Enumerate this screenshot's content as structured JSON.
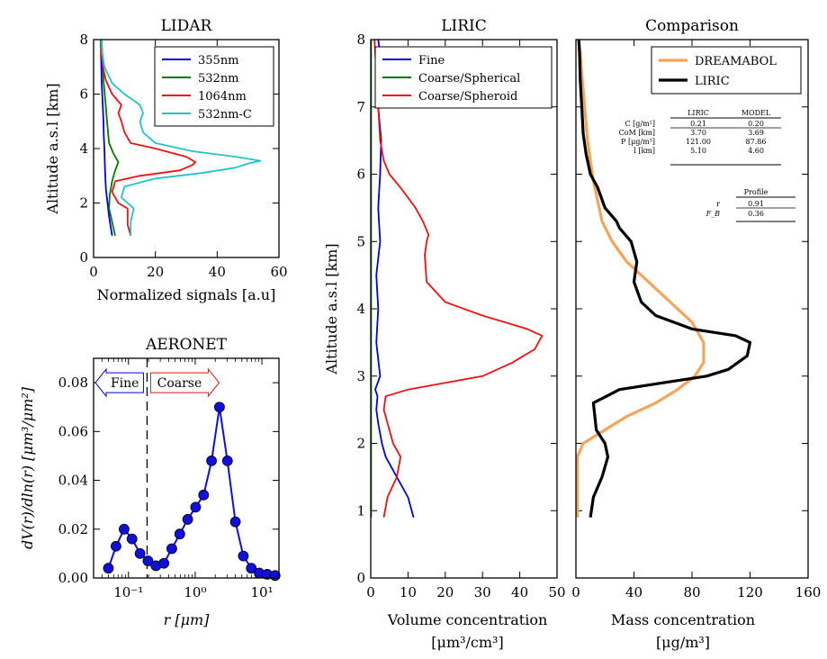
{
  "colors": {
    "blue": "#0000dd",
    "green": "#007a00",
    "red": "#ee1111",
    "cyan": "#22c4c4",
    "orange": "#f4a55a",
    "black": "#000000",
    "aeronet_marker": "#1010dd"
  },
  "chart_data": [
    {
      "id": "lidar",
      "type": "line",
      "title": "LIDAR",
      "xlabel": "Normalized signals [a.u]",
      "ylabel": "Altitude a.s.l [km]",
      "xlim": [
        0,
        60
      ],
      "ylim": [
        0,
        8
      ],
      "xticks": [
        0,
        20,
        40,
        60
      ],
      "yticks": [
        0,
        2,
        4,
        6,
        8
      ],
      "legend": {
        "placement": "top-right"
      },
      "series": [
        {
          "name": "355nm",
          "color": "blue",
          "x": [
            6,
            5,
            4.5,
            4,
            3.8,
            3.6,
            3.5,
            3.3,
            3.2,
            3,
            2.8,
            2.6,
            2.5,
            2.4,
            2.3
          ],
          "y": [
            0.8,
            1.5,
            2,
            2.5,
            3,
            3.5,
            4,
            4.5,
            5,
            5.5,
            6,
            6.5,
            7,
            7.5,
            8
          ]
        },
        {
          "name": "532nm",
          "color": "green",
          "x": [
            7,
            6,
            5,
            5.2,
            6,
            7,
            8,
            6.5,
            5,
            4.5,
            4,
            3.6,
            3.2,
            3,
            2.8,
            2.6
          ],
          "y": [
            0.8,
            1.3,
            1.8,
            2.3,
            2.8,
            3.2,
            3.5,
            3.8,
            4.2,
            4.8,
            5.5,
            6,
            6.5,
            7,
            7.5,
            8
          ]
        },
        {
          "name": "1064nm",
          "color": "red",
          "x": [
            12,
            11,
            11,
            8,
            6,
            7,
            15,
            28,
            32,
            33,
            30,
            20,
            12,
            10,
            9,
            8,
            9,
            6,
            4,
            3,
            2.5,
            2.2
          ],
          "y": [
            0.8,
            1.2,
            1.8,
            2,
            2.4,
            2.8,
            3,
            3.2,
            3.4,
            3.5,
            3.7,
            4,
            4.2,
            4.6,
            5,
            5.3,
            5.6,
            6,
            6.5,
            7,
            7.5,
            8
          ]
        },
        {
          "name": "532nm-C",
          "color": "cyan",
          "x": [
            12,
            12,
            13,
            9,
            10,
            20,
            35,
            46,
            50,
            54,
            46,
            32,
            20,
            16,
            15,
            16,
            15,
            10,
            6,
            3.5,
            2.8,
            2.5
          ],
          "y": [
            0.8,
            1.3,
            1.8,
            2.2,
            2.6,
            2.9,
            3.1,
            3.3,
            3.45,
            3.55,
            3.7,
            3.9,
            4.2,
            4.6,
            5,
            5.3,
            5.6,
            6,
            6.4,
            7,
            7.5,
            8
          ]
        }
      ]
    },
    {
      "id": "aeronet",
      "type": "line",
      "title": "AERONET",
      "xlabel": "r [μm]",
      "ylabel": "dV(r)/dln(r) [μm³/μm²]",
      "xscale": "log",
      "xlim": [
        0.03,
        18
      ],
      "ylim": [
        0,
        0.09
      ],
      "xticks_labels": [
        "10⁻¹",
        "10⁰",
        "10¹"
      ],
      "xticks": [
        0.1,
        1,
        10
      ],
      "yticks": [
        0.0,
        0.02,
        0.04,
        0.06,
        0.08
      ],
      "separator_r": 0.19,
      "fine_label": "Fine",
      "coarse_label": "Coarse",
      "r": [
        0.05,
        0.065,
        0.086,
        0.113,
        0.149,
        0.196,
        0.258,
        0.339,
        0.446,
        0.587,
        0.772,
        1.015,
        1.336,
        1.757,
        2.312,
        3.042,
        4.002,
        5.265,
        6.927,
        9.113,
        11.99,
        15.77
      ],
      "values": [
        0.004,
        0.013,
        0.02,
        0.016,
        0.01,
        0.007,
        0.005,
        0.006,
        0.012,
        0.018,
        0.024,
        0.029,
        0.034,
        0.048,
        0.07,
        0.048,
        0.023,
        0.009,
        0.004,
        0.002,
        0.0015,
        0.001
      ]
    },
    {
      "id": "liric",
      "type": "line",
      "title": "LIRIC",
      "xlabel": "Volume concentration",
      "xlabel_unit": "[μm³/cm³]",
      "ylabel": "Altitude a.s.l [km]",
      "xlim": [
        0,
        50
      ],
      "ylim": [
        0,
        8
      ],
      "xticks": [
        0,
        10,
        20,
        30,
        40,
        50
      ],
      "yticks": [
        0,
        1,
        2,
        3,
        4,
        5,
        6,
        7,
        8
      ],
      "legend": {
        "placement": "top-right"
      },
      "series": [
        {
          "name": "Fine",
          "color": "blue",
          "x": [
            11.5,
            10,
            7,
            4,
            3,
            2,
            1.5,
            1.8,
            1.2,
            2.5,
            1.5,
            2,
            1.5,
            2.5,
            2,
            2.5,
            2.8,
            2,
            2.5,
            2.5,
            2,
            1.8
          ],
          "y": [
            0.9,
            1.2,
            1.5,
            1.8,
            2,
            2.3,
            2.5,
            2.7,
            2.8,
            3,
            3.5,
            4,
            4.5,
            5,
            5.5,
            6,
            6.5,
            7,
            7.5,
            7.8,
            8,
            8
          ]
        },
        {
          "name": "Coarse/Spherical",
          "color": "green",
          "x": [
            0.1,
            0.1,
            0.1,
            0.1,
            0.1
          ],
          "y": [
            0.9,
            3,
            5,
            7,
            8
          ]
        },
        {
          "name": "Coarse/Spheroid",
          "color": "red",
          "x": [
            3.5,
            4.5,
            7,
            8,
            6,
            5,
            4,
            3.5,
            4,
            10,
            20,
            30,
            38,
            44,
            46,
            42,
            30,
            20,
            15,
            14.5,
            15,
            15.5,
            14,
            12,
            8,
            5,
            3.5,
            2.5,
            2,
            1.5,
            1.2,
            1
          ],
          "y": [
            0.9,
            1.2,
            1.5,
            1.8,
            2,
            2.2,
            2.4,
            2.5,
            2.7,
            2.8,
            2.9,
            3.0,
            3.2,
            3.4,
            3.6,
            3.7,
            3.9,
            4.1,
            4.4,
            4.8,
            5,
            5.1,
            5.3,
            5.5,
            5.8,
            6,
            6.2,
            6.5,
            7,
            7.5,
            7.8,
            8
          ]
        }
      ]
    },
    {
      "id": "comparison",
      "type": "line",
      "title": "Comparison",
      "xlabel": "Mass concentration",
      "xlabel_unit": "[μg/m³]",
      "xlim": [
        0,
        160
      ],
      "ylim": [
        0,
        8
      ],
      "xticks": [
        0,
        40,
        80,
        120,
        160
      ],
      "yticks": [
        0,
        1,
        2,
        3,
        4,
        5,
        6,
        7,
        8
      ],
      "legend": {
        "placement": "top-right"
      },
      "series": [
        {
          "name": "DREAMABOL",
          "color": "orange",
          "x": [
            1,
            1,
            1,
            5,
            20,
            35,
            55,
            70,
            82,
            88,
            88,
            80,
            65,
            50,
            35,
            25,
            18,
            15,
            12,
            10,
            8,
            6,
            4,
            3,
            2
          ],
          "y": [
            0.9,
            1.5,
            1.8,
            2,
            2.2,
            2.4,
            2.6,
            2.8,
            3.0,
            3.2,
            3.5,
            3.8,
            4.1,
            4.4,
            4.7,
            5,
            5.3,
            5.6,
            5.9,
            6.2,
            6.5,
            7,
            7.5,
            7.8,
            8
          ]
        },
        {
          "name": "LIRIC",
          "color": "black",
          "x": [
            10,
            12,
            18,
            22,
            20,
            14,
            13,
            12,
            30,
            60,
            90,
            105,
            118,
            120,
            110,
            80,
            55,
            45,
            40,
            42,
            38,
            30,
            28,
            20,
            15,
            10,
            7,
            5,
            4,
            3,
            2.5,
            2
          ],
          "y": [
            0.9,
            1.2,
            1.5,
            1.8,
            2,
            2.2,
            2.4,
            2.6,
            2.8,
            2.9,
            3.0,
            3.1,
            3.3,
            3.5,
            3.6,
            3.7,
            3.9,
            4.1,
            4.4,
            4.7,
            5,
            5.2,
            5.3,
            5.5,
            5.8,
            6,
            6.3,
            6.6,
            7,
            7.4,
            7.8,
            8
          ]
        }
      ],
      "stats_table": {
        "header": [
          "",
          "LIRIC",
          "MODEL"
        ],
        "rows": [
          [
            "C [g/m²]",
            "0.21",
            "0.20"
          ],
          [
            "CoM [km]",
            "3.70",
            "3.69"
          ],
          [
            "P [μg/m³]",
            "121.00",
            "87.86"
          ],
          [
            "l [km]",
            "5.10",
            "4.60"
          ]
        ]
      },
      "profile_table": {
        "header": "Profile",
        "rows": [
          [
            "r",
            "0.91"
          ],
          [
            "F_B",
            "0.36"
          ]
        ]
      }
    }
  ]
}
